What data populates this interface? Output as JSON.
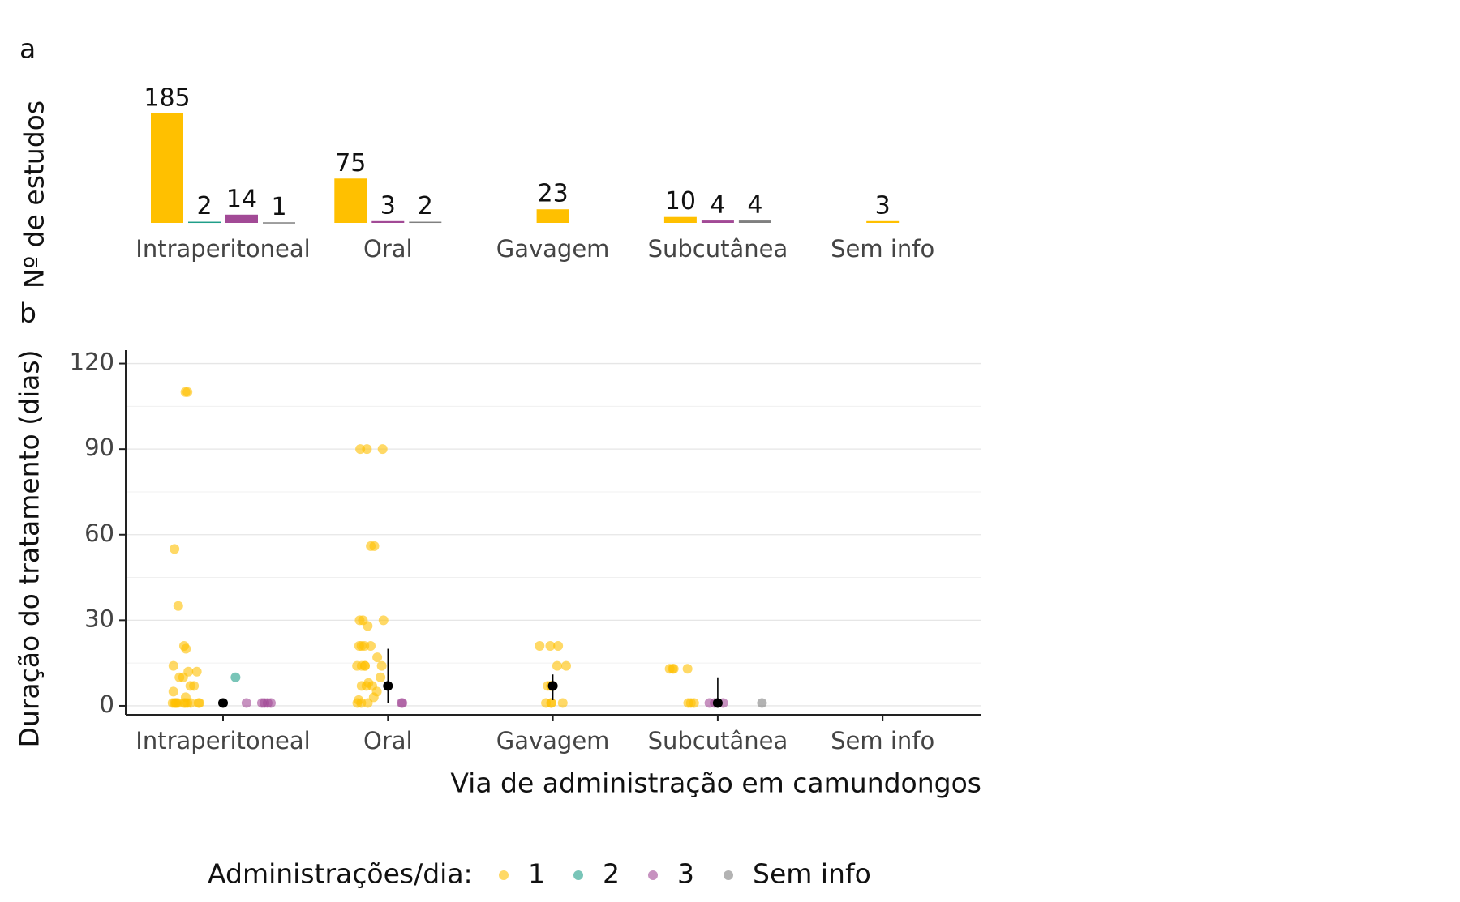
{
  "chart_data": [
    {
      "type": "grouped-bar",
      "panel_label": "a",
      "ylabel": "Nº de estudos",
      "categories": [
        "Intraperitoneal",
        "Oral",
        "Gavagem",
        "Subcutânea",
        "Sem info"
      ],
      "series": [
        {
          "name": "1",
          "color": "#ffc000",
          "values": [
            185,
            75,
            23,
            10,
            3
          ]
        },
        {
          "name": "2",
          "color": "#1f9e89",
          "values": [
            2,
            null,
            null,
            null,
            null
          ]
        },
        {
          "name": "3",
          "color": "#a24a96",
          "values": [
            14,
            3,
            null,
            4,
            null
          ]
        },
        {
          "name": "Sem info",
          "color": "#808080",
          "values": [
            1,
            2,
            null,
            4,
            null
          ]
        }
      ]
    },
    {
      "type": "strip",
      "panel_label": "b",
      "ylabel": "Duração do tratamento (dias)",
      "xlabel": "Via de administração em camundongos",
      "categories": [
        "Intraperitoneal",
        "Oral",
        "Gavagem",
        "Subcutânea",
        "Sem info"
      ],
      "ylim": [
        -2,
        123
      ],
      "yticks": [
        0,
        30,
        60,
        90,
        120
      ],
      "grid": true,
      "legend_title": "Administrações/dia:",
      "series": [
        {
          "name": "1",
          "color": "#ffc000",
          "x": [
            "Intraperitoneal",
            "Intraperitoneal",
            "Intraperitoneal",
            "Intraperitoneal",
            "Intraperitoneal",
            "Intraperitoneal",
            "Intraperitoneal",
            "Intraperitoneal",
            "Intraperitoneal",
            "Intraperitoneal",
            "Intraperitoneal",
            "Intraperitoneal",
            "Intraperitoneal",
            "Intraperitoneal",
            "Intraperitoneal",
            "Intraperitoneal",
            "Intraperitoneal",
            "Intraperitoneal",
            "Intraperitoneal",
            "Intraperitoneal",
            "Intraperitoneal",
            "Intraperitoneal",
            "Intraperitoneal",
            "Intraperitoneal",
            "Intraperitoneal",
            "Intraperitoneal",
            "Oral",
            "Oral",
            "Oral",
            "Oral",
            "Oral",
            "Oral",
            "Oral",
            "Oral",
            "Oral",
            "Oral",
            "Oral",
            "Oral",
            "Oral",
            "Oral",
            "Oral",
            "Oral",
            "Oral",
            "Oral",
            "Oral",
            "Oral",
            "Oral",
            "Oral",
            "Oral",
            "Oral",
            "Oral",
            "Oral",
            "Oral",
            "Oral",
            "Oral",
            "Oral",
            "Gavagem",
            "Gavagem",
            "Gavagem",
            "Gavagem",
            "Gavagem",
            "Gavagem",
            "Gavagem",
            "Gavagem",
            "Gavagem",
            "Gavagem",
            "Gavagem",
            "Gavagem",
            "Gavagem",
            "Subcutânea",
            "Subcutânea",
            "Subcutânea",
            "Subcutânea",
            "Subcutânea",
            "Subcutânea",
            "Subcutânea"
          ],
          "values": [
            110,
            110,
            55,
            35,
            21,
            20,
            14,
            12,
            12,
            10,
            10,
            7,
            7,
            5,
            3,
            1,
            1,
            1,
            1,
            1,
            1,
            1,
            1,
            1,
            1,
            1,
            90,
            90,
            90,
            56,
            56,
            30,
            30,
            30,
            28,
            21,
            21,
            21,
            21,
            17,
            14,
            14,
            14,
            14,
            14,
            10,
            8,
            7,
            7,
            7,
            5,
            3,
            2,
            1,
            1,
            1,
            21,
            21,
            21,
            14,
            14,
            7,
            7,
            7,
            7,
            1,
            1,
            1,
            1,
            13,
            13,
            13,
            13,
            1,
            1,
            1
          ]
        },
        {
          "name": "2",
          "color": "#1f9e89",
          "x": [
            "Intraperitoneal"
          ],
          "values": [
            10
          ]
        },
        {
          "name": "3",
          "color": "#a24a96",
          "x": [
            "Intraperitoneal",
            "Intraperitoneal",
            "Intraperitoneal",
            "Intraperitoneal",
            "Intraperitoneal",
            "Oral",
            "Oral",
            "Subcutânea",
            "Subcutânea",
            "Subcutânea"
          ],
          "values": [
            1,
            1,
            1,
            1,
            1,
            1,
            1,
            1,
            1,
            1
          ]
        },
        {
          "name": "Sem info",
          "color": "#808080",
          "x": [
            "Subcutânea"
          ],
          "values": [
            1
          ]
        }
      ],
      "summary": {
        "values": [
          1,
          7,
          7,
          1,
          null
        ],
        "lower": [
          1,
          1,
          2,
          0,
          null
        ],
        "upper": [
          1,
          20,
          11,
          10,
          null
        ]
      }
    }
  ]
}
